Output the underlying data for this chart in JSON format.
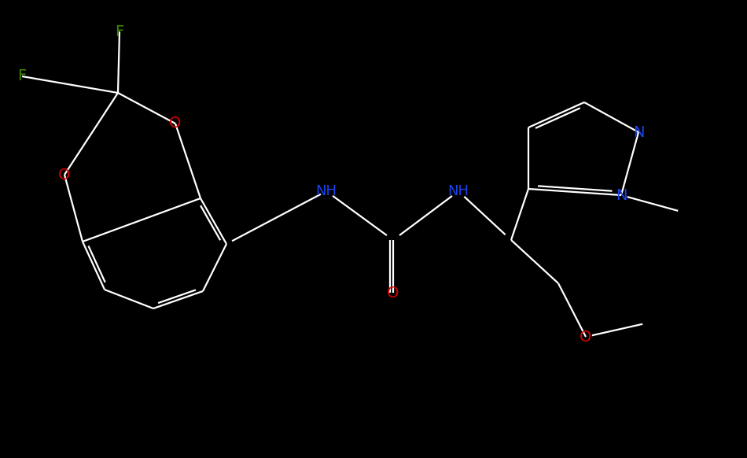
{
  "background_color": "#000000",
  "bond_color": "#ffffff",
  "atom_colors": {
    "F": "#3a8c00",
    "O": "#dd0000",
    "N": "#1a44ee",
    "C": "#ffffff",
    "H": "#ffffff"
  },
  "figsize": [
    9.5,
    5.82
  ],
  "dpi": 100
}
